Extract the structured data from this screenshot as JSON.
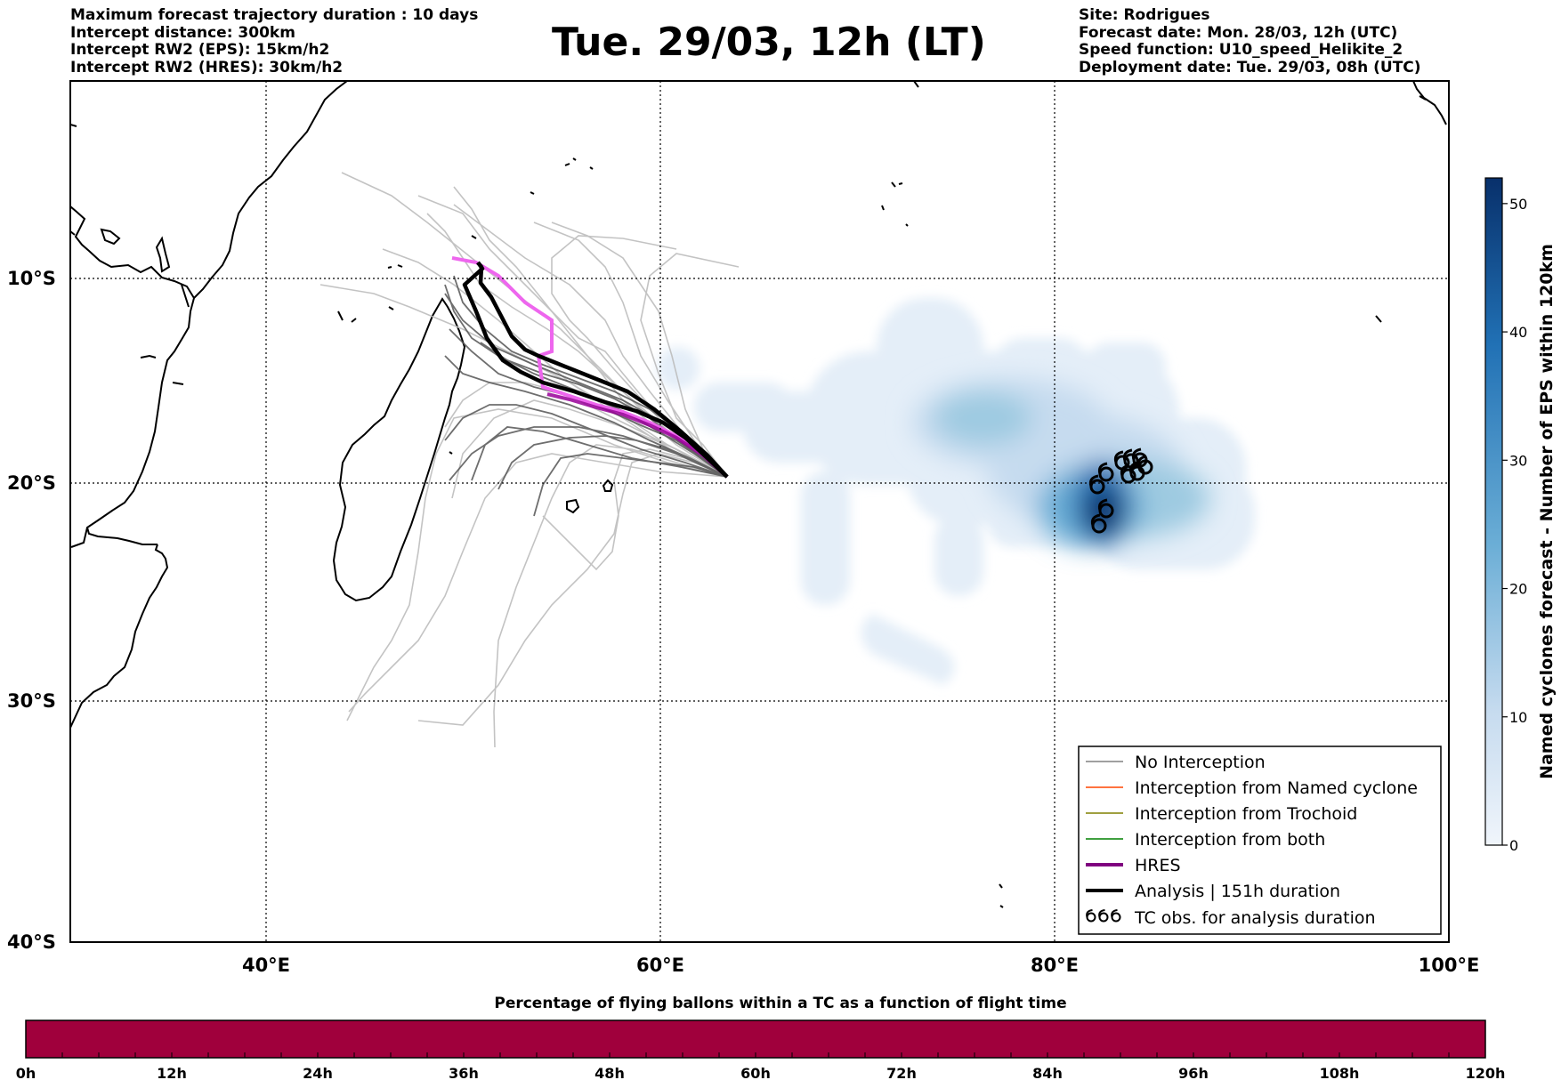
{
  "header": {
    "left_lines": [
      "Maximum forecast trajectory duration : 10 days",
      "Intercept distance: 300km",
      "Intercept RW2 (EPS):  15km/h2",
      "Intercept RW2 (HRES): 30km/h2"
    ],
    "title": "Tue. 29/03, 12h (LT)",
    "right_lines": [
      "Site: Rodrigues",
      "Forecast date: Mon. 28/03, 12h (UTC)",
      "Speed function: U10_speed_Helikite_2",
      "Deployment date: Tue. 29/03, 08h (UTC)"
    ]
  },
  "map": {
    "lon_range": [
      30,
      100
    ],
    "lat_range": [
      -40,
      0
    ],
    "lon_ticks": [
      "40°E",
      "60°E",
      "80°E",
      "100°E"
    ],
    "lat_ticks": [
      "10°S",
      "20°S",
      "30°S",
      "40°S"
    ],
    "colors": {
      "coast": "#000000",
      "grid": "#000000",
      "eps_tracks": "#bdbdbd",
      "eps_tracks_dark": "#555555",
      "hres": "#ee66ee",
      "analysis": "#000000"
    }
  },
  "legend": {
    "items": [
      {
        "label": "No Interception",
        "color": "#808080",
        "style": "thin"
      },
      {
        "label": "Interception from Named cyclone",
        "color": "#ff4500",
        "style": "thin"
      },
      {
        "label": "Interception from Trochoid",
        "color": "#808000",
        "style": "thin"
      },
      {
        "label": "Interception from both",
        "color": "#008000",
        "style": "thin"
      },
      {
        "label": "HRES",
        "color": "#800080",
        "style": "thick"
      },
      {
        "label": "Analysis | 151h duration",
        "color": "#000000",
        "style": "thick"
      },
      {
        "label": "TC obs. for analysis duration",
        "color": "#000000",
        "style": "cyclone"
      }
    ]
  },
  "colorbar": {
    "label": "Named cyclones forecast - Number of EPS within 120km",
    "ticks": [
      "0",
      "10",
      "20",
      "30",
      "40",
      "50"
    ],
    "min": 0,
    "max": 52,
    "colors": [
      "#f0f5fb",
      "#c6dbef",
      "#6baed6",
      "#2171b5",
      "#08306b"
    ]
  },
  "timeline": {
    "title": "Percentage of flying ballons within a TC as a function of flight time",
    "ticks": [
      "0h",
      "12h",
      "24h",
      "36h",
      "48h",
      "60h",
      "72h",
      "84h",
      "96h",
      "108h",
      "120h"
    ],
    "bar_color": "#a0003c"
  }
}
